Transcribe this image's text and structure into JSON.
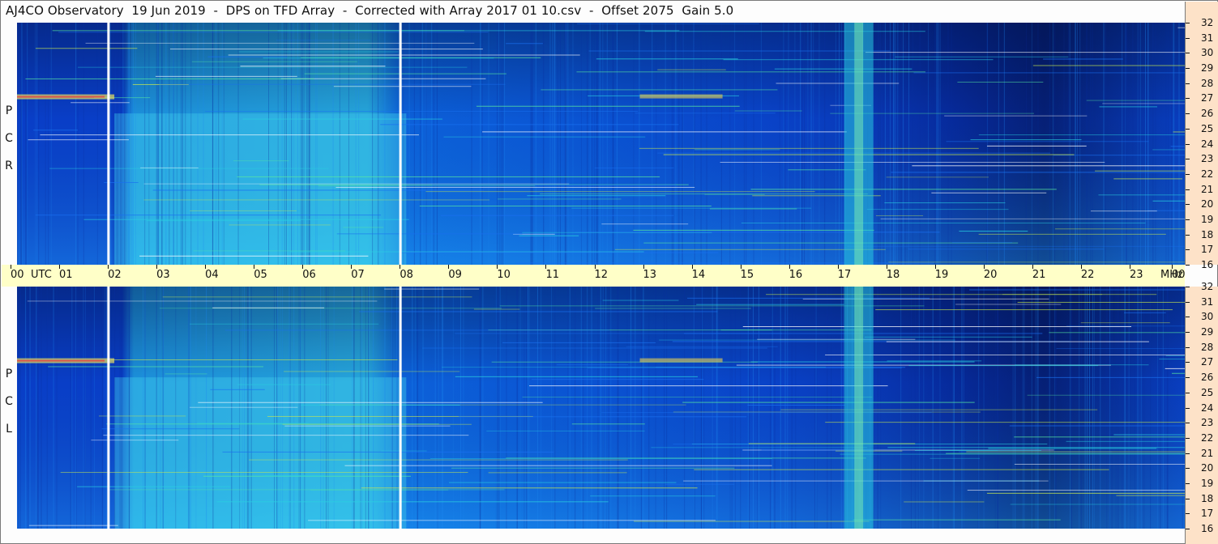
{
  "title": "AJ4CO Observatory  19 Jun 2019  -  DPS on TFD Array  -  Corrected with Array 2017 01 10.csv  -  Offset 2075  Gain 5.0",
  "panels": {
    "rcp": {
      "label": [
        "P",
        "C",
        "R"
      ]
    },
    "lcp": {
      "label": [
        "P",
        "C",
        "L"
      ]
    }
  },
  "time_axis": {
    "utc_label": "UTC",
    "mhz_label": "MHz"
  },
  "colors": {
    "background": "#fdfdfd",
    "time_axis_bg": "#ffffc8",
    "freq_axis_bg": "#fde2c8",
    "spectrogram_low": "#08123a",
    "spectrogram_mid": "#0a5fe8",
    "spectrogram_high": "#2cd8d8",
    "spectrogram_peak": "#e84040"
  },
  "chart_data": [
    {
      "type": "heatmap",
      "name_on_chart": "RCP",
      "x_axis": {
        "quantity": "time",
        "units": "UTC hour",
        "range": [
          0,
          24
        ],
        "tick_labels": [
          "00",
          "01",
          "02",
          "03",
          "04",
          "05",
          "06",
          "07",
          "08",
          "09",
          "10",
          "11",
          "12",
          "13",
          "14",
          "15",
          "16",
          "17",
          "18",
          "19",
          "20",
          "21",
          "22",
          "23",
          "00"
        ]
      },
      "y_axis": {
        "quantity": "frequency",
        "units": "MHz",
        "range": [
          16,
          32
        ],
        "tick_labels": [
          "32",
          "31",
          "30",
          "29",
          "28",
          "27",
          "26",
          "25",
          "24",
          "23",
          "22",
          "21",
          "20",
          "19",
          "18",
          "17",
          "16"
        ]
      },
      "data_gaps_utc": [
        1.88,
        7.88
      ],
      "notable_features": {
        "persistent_band_utc_hours": [
          17.0,
          17.6
        ],
        "enhanced_period_utc_hours": [
          2.0,
          8.0
        ],
        "strong_signal_frequency_mhz": 27.1
      },
      "legend": "none",
      "grid": false
    },
    {
      "type": "heatmap",
      "name_on_chart": "LCP",
      "x_axis": {
        "quantity": "time",
        "units": "UTC hour",
        "range": [
          0,
          24
        ],
        "tick_labels": [
          "00",
          "01",
          "02",
          "03",
          "04",
          "05",
          "06",
          "07",
          "08",
          "09",
          "10",
          "11",
          "12",
          "13",
          "14",
          "15",
          "16",
          "17",
          "18",
          "19",
          "20",
          "21",
          "22",
          "23",
          "00"
        ]
      },
      "y_axis": {
        "quantity": "frequency",
        "units": "MHz",
        "range": [
          16,
          32
        ],
        "tick_labels": [
          "32",
          "31",
          "30",
          "29",
          "28",
          "27",
          "26",
          "25",
          "24",
          "23",
          "22",
          "21",
          "20",
          "19",
          "18",
          "17",
          "16"
        ]
      },
      "data_gaps_utc": [
        1.88,
        7.88
      ],
      "notable_features": {
        "persistent_band_utc_hours": [
          17.0,
          17.6
        ],
        "enhanced_period_utc_hours": [
          2.0,
          8.0
        ],
        "strong_signal_frequency_mhz": 27.1
      },
      "legend": "none",
      "grid": false
    }
  ]
}
